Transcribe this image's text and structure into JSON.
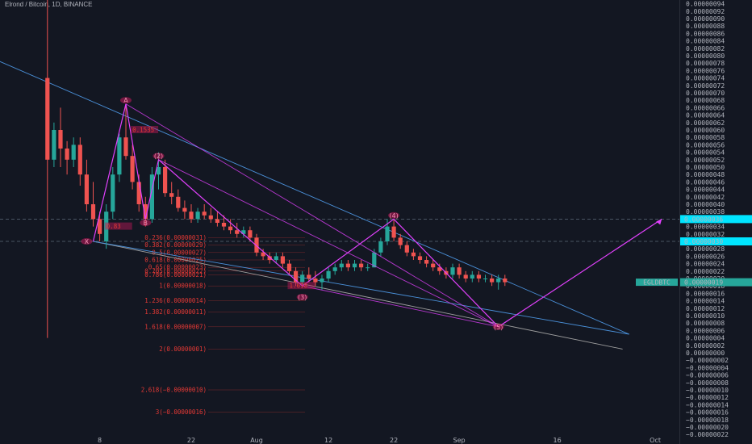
{
  "header": {
    "title": "Elrond / Bitcoin, 1D, BINANCE"
  },
  "colors": {
    "background": "#131722",
    "up": "#26a69a",
    "down": "#ef5350",
    "trendline": "#4a90d9",
    "wave": "#e040fb",
    "fib": "#e53935",
    "price_tag": "#26a69a",
    "cyan_tag": "#00e5ff"
  },
  "chart_data": {
    "type": "candlestick",
    "title": "Elrond / Bitcoin, 1D, BINANCE",
    "y_ticks": [
      "0.00000094",
      "0.00000092",
      "0.00000090",
      "0.00000088",
      "0.00000086",
      "0.00000084",
      "0.00000082",
      "0.00000080",
      "0.00000078",
      "0.00000076",
      "0.00000074",
      "0.00000072",
      "0.00000070",
      "0.00000068",
      "0.00000066",
      "0.00000064",
      "0.00000062",
      "0.00000060",
      "0.00000058",
      "0.00000056",
      "0.00000054",
      "0.00000052",
      "0.00000050",
      "0.00000048",
      "0.00000046",
      "0.00000044",
      "0.00000042",
      "0.00000040",
      "0.00000038",
      "0.00000036",
      "0.00000034",
      "0.00000032",
      "0.00000030",
      "0.00000028",
      "0.00000026",
      "0.00000024",
      "0.00000022",
      "0.00000020",
      "0.00000018",
      "0.00000016",
      "0.00000014",
      "0.00000012",
      "0.00000010",
      "0.00000008",
      "0.00000006",
      "0.00000004",
      "0.00000002",
      "0.00000000",
      "−0.00000002",
      "−0.00000004",
      "−0.00000006",
      "−0.00000008",
      "−0.00000010",
      "−0.00000012",
      "−0.00000014",
      "−0.00000016",
      "−0.00000018",
      "−0.00000020",
      "−0.00000022"
    ],
    "x_ticks": [
      {
        "label": "8",
        "day": -24
      },
      {
        "label": "22",
        "day": -10
      },
      {
        "label": "Aug",
        "day": 0
      },
      {
        "label": "12",
        "day": 11
      },
      {
        "label": "22",
        "day": 21
      },
      {
        "label": "Sep",
        "day": 31
      },
      {
        "label": "16",
        "day": 46
      },
      {
        "label": "Oct",
        "day": 61
      }
    ],
    "ohlc": [
      [
        -32,
        7.4e-07,
        9.5e-07,
        4e-08,
        5.2e-07
      ],
      [
        -31,
        5.2e-07,
        6.2e-07,
        5e-07,
        6e-07
      ],
      [
        -30,
        6e-07,
        6.6e-07,
        5e-07,
        5.5e-07
      ],
      [
        -29,
        5.5e-07,
        5.7e-07,
        4.8e-07,
        5.2e-07
      ],
      [
        -28,
        5.2e-07,
        5.8e-07,
        5e-07,
        5.6e-07
      ],
      [
        -27,
        5.6e-07,
        5.8e-07,
        4.5e-07,
        4.8e-07
      ],
      [
        -26,
        4.8e-07,
        5.2e-07,
        3.8e-07,
        4e-07
      ],
      [
        -25,
        4e-07,
        4.6e-07,
        3.4e-07,
        3.6e-07
      ],
      [
        -24,
        3.6e-07,
        3.8e-07,
        3e-07,
        3.2e-07
      ],
      [
        -23,
        3e-07,
        4e-07,
        2.8e-07,
        3.8e-07
      ],
      [
        -22,
        3.8e-07,
        5e-07,
        3.6e-07,
        4.8e-07
      ],
      [
        -21,
        4.8e-07,
        5.9e-07,
        4.6e-07,
        5.8e-07
      ],
      [
        -20,
        5.8e-07,
        6.7e-07,
        5.2e-07,
        5.3e-07
      ],
      [
        -19,
        5.3e-07,
        5.6e-07,
        4.4e-07,
        4.6e-07
      ],
      [
        -18,
        4.6e-07,
        4.8e-07,
        3.8e-07,
        4e-07
      ],
      [
        -17,
        4e-07,
        4.2e-07,
        3.4e-07,
        3.6e-07
      ],
      [
        -16,
        3.6e-07,
        5e-07,
        3.5e-07,
        4.8e-07
      ],
      [
        -15,
        4.8e-07,
        5.4e-07,
        4.4e-07,
        5e-07
      ],
      [
        -14,
        5e-07,
        5.2e-07,
        4.2e-07,
        4.3e-07
      ],
      [
        -13,
        4.3e-07,
        4.6e-07,
        4e-07,
        4.2e-07
      ],
      [
        -12,
        4.2e-07,
        4.4e-07,
        3.8e-07,
        3.9e-07
      ],
      [
        -11,
        3.9e-07,
        4.1e-07,
        3.6e-07,
        3.8e-07
      ],
      [
        -10,
        3.8e-07,
        4e-07,
        3.5e-07,
        3.6e-07
      ],
      [
        -9,
        3.6e-07,
        3.9e-07,
        3.5e-07,
        3.8e-07
      ],
      [
        -8,
        3.8e-07,
        4e-07,
        3.6e-07,
        3.7e-07
      ],
      [
        -7,
        3.7e-07,
        3.9e-07,
        3.5e-07,
        3.6e-07
      ],
      [
        -6,
        3.6e-07,
        3.8e-07,
        3.4e-07,
        3.5e-07
      ],
      [
        -5,
        3.5e-07,
        3.7e-07,
        3.3e-07,
        3.4e-07
      ],
      [
        -4,
        3.4e-07,
        3.6e-07,
        3.2e-07,
        3.3e-07
      ],
      [
        -3,
        3.3e-07,
        3.5e-07,
        3.1e-07,
        3.2e-07
      ],
      [
        -2,
        3.2e-07,
        3.4e-07,
        3.1e-07,
        3.3e-07
      ],
      [
        -1,
        3.3e-07,
        3.4e-07,
        3e-07,
        3.1e-07
      ],
      [
        0,
        3.1e-07,
        3.2e-07,
        2.6e-07,
        2.7e-07
      ],
      [
        1,
        2.7e-07,
        2.8e-07,
        2.5e-07,
        2.6e-07
      ],
      [
        2,
        2.6e-07,
        2.7e-07,
        2.4e-07,
        2.5e-07
      ],
      [
        3,
        2.5e-07,
        2.7e-07,
        2.4e-07,
        2.6e-07
      ],
      [
        4,
        2.6e-07,
        2.7e-07,
        2.3e-07,
        2.4e-07
      ],
      [
        5,
        2.4e-07,
        2.5e-07,
        2.1e-07,
        2.2e-07
      ],
      [
        6,
        2.2e-07,
        2.3e-07,
        1.8e-07,
        1.9e-07
      ],
      [
        7,
        1.9e-07,
        2.2e-07,
        1.8e-07,
        2.1e-07
      ],
      [
        8,
        2.1e-07,
        2.3e-07,
        1.9e-07,
        2e-07
      ],
      [
        9,
        2e-07,
        2.2e-07,
        1.8e-07,
        1.9e-07
      ],
      [
        10,
        1.9e-07,
        2.1e-07,
        1.7e-07,
        2e-07
      ],
      [
        11,
        2e-07,
        2.3e-07,
        1.9e-07,
        2.2e-07
      ],
      [
        12,
        2.2e-07,
        2.4e-07,
        2.1e-07,
        2.3e-07
      ],
      [
        13,
        2.3e-07,
        2.5e-07,
        2.2e-07,
        2.4e-07
      ],
      [
        14,
        2.4e-07,
        2.5e-07,
        2.2e-07,
        2.3e-07
      ],
      [
        15,
        2.3e-07,
        2.5e-07,
        2.2e-07,
        2.4e-07
      ],
      [
        16,
        2.4e-07,
        2.5e-07,
        2.2e-07,
        2.3e-07
      ],
      [
        17,
        2.3e-07,
        2.4e-07,
        2.2e-07,
        2.3e-07
      ],
      [
        18,
        2.3e-07,
        2.8e-07,
        2.3e-07,
        2.7e-07
      ],
      [
        19,
        2.7e-07,
        3.1e-07,
        2.6e-07,
        3e-07
      ],
      [
        20,
        3e-07,
        3.6e-07,
        2.9e-07,
        3.4e-07
      ],
      [
        21,
        3.4e-07,
        3.6e-07,
        3e-07,
        3.1e-07
      ],
      [
        22,
        3.1e-07,
        3.2e-07,
        2.8e-07,
        2.9e-07
      ],
      [
        23,
        2.9e-07,
        3e-07,
        2.6e-07,
        2.7e-07
      ],
      [
        24,
        2.7e-07,
        2.8e-07,
        2.5e-07,
        2.6e-07
      ],
      [
        25,
        2.6e-07,
        2.7e-07,
        2.4e-07,
        2.5e-07
      ],
      [
        26,
        2.5e-07,
        2.6e-07,
        2.3e-07,
        2.4e-07
      ],
      [
        27,
        2.4e-07,
        2.5e-07,
        2.2e-07,
        2.3e-07
      ],
      [
        28,
        2.3e-07,
        2.4e-07,
        2.1e-07,
        2.2e-07
      ],
      [
        29,
        2.2e-07,
        2.3e-07,
        2e-07,
        2.1e-07
      ],
      [
        30,
        2.1e-07,
        2.4e-07,
        2e-07,
        2.3e-07
      ],
      [
        31,
        2.3e-07,
        2.4e-07,
        2e-07,
        2.1e-07
      ],
      [
        32,
        2.1e-07,
        2.2e-07,
        1.9e-07,
        2e-07
      ],
      [
        33,
        2e-07,
        2.2e-07,
        1.9e-07,
        2.1e-07
      ],
      [
        34,
        2.1e-07,
        2.2e-07,
        1.9e-07,
        2e-07
      ],
      [
        35,
        2e-07,
        2.1e-07,
        1.9e-07,
        2e-07
      ],
      [
        36,
        2e-07,
        2.1e-07,
        1.8e-07,
        1.9e-07
      ],
      [
        37,
        1.9e-07,
        2.1e-07,
        1.7e-07,
        2e-07
      ],
      [
        38,
        2e-07,
        2.1e-07,
        1.8e-07,
        1.9e-07
      ]
    ],
    "trendlines": [
      {
        "color": "#4a90d9",
        "points": [
          [
            -40,
            7.9e-07
          ],
          [
            57,
            5e-08
          ]
        ]
      },
      {
        "color": "#9e9e9e",
        "points": [
          [
            -25,
            3e-07
          ],
          [
            56,
            1e-08
          ]
        ]
      },
      {
        "color": "#4a90d9",
        "points": [
          [
            -25,
            3e-07
          ],
          [
            57,
            5e-08
          ]
        ]
      }
    ],
    "wave_path": [
      [
        -25,
        3e-07
      ],
      [
        -20,
        6.7e-07
      ],
      [
        -17,
        3.6e-07
      ],
      [
        -15,
        5.2e-07
      ],
      [
        7,
        1.8e-07
      ],
      [
        21,
        3.6e-07
      ],
      [
        37,
        7e-08
      ],
      [
        62,
        3.6e-07
      ]
    ],
    "wave_extra": [
      [
        [
          -15,
          5.2e-07
        ],
        [
          37,
          7e-08
        ]
      ],
      [
        [
          -20,
          6.7e-07
        ],
        [
          37,
          7e-08
        ]
      ],
      [
        [
          7,
          1.8e-07
        ],
        [
          37,
          7e-08
        ]
      ]
    ],
    "wave_labels": [
      {
        "text": "A",
        "day": -20,
        "price": 6.8e-07
      },
      {
        "text": "(2)",
        "day": -15,
        "price": 5.3e-07
      },
      {
        "text": "(4)",
        "day": 21,
        "price": 3.7e-07
      },
      {
        "text": "(3)",
        "day": 7,
        "price": 1.5e-07
      },
      {
        "text": "(5)",
        "day": 37,
        "price": 7e-08
      },
      {
        "text": "X",
        "day": -26,
        "price": 3e-07
      },
      {
        "text": "B",
        "day": -17,
        "price": 3.5e-07
      }
    ],
    "annotations": [
      {
        "text": "0.1535",
        "day": -19,
        "price": 6e-07
      },
      {
        "text": "0.83",
        "day": -23,
        "price": 3.4e-07
      },
      {
        "text": "1.618",
        "day": 5,
        "price": 1.8e-07
      }
    ],
    "fib_levels": [
      {
        "label": "0.236(0.00000031)",
        "price": 3.1e-07
      },
      {
        "label": "0.382(0.00000029)",
        "price": 2.9e-07
      },
      {
        "label": "0.5(0.00000027)",
        "price": 2.7e-07
      },
      {
        "label": "0.618(0.00000025)",
        "price": 2.5e-07
      },
      {
        "label": "0.65(0.00000023)",
        "price": 2.3e-07
      },
      {
        "label": "0.705(0.00000022)",
        "price": 2.2e-07
      },
      {
        "label": "0.786(0.00000021)",
        "price": 2.1e-07
      },
      {
        "label": "1(0.00000018)",
        "price": 1.8e-07
      },
      {
        "label": "1.236(0.00000014)",
        "price": 1.4e-07
      },
      {
        "label": "1.382(0.00000011)",
        "price": 1.1e-07
      },
      {
        "label": "1.618(0.00000007)",
        "price": 7e-08
      },
      {
        "label": "2(0.00000001)",
        "price": 1e-08
      },
      {
        "label": "2.618(−0.00000010)",
        "price": -1e-07
      },
      {
        "label": "3(−0.00000016)",
        "price": -1.6e-07
      }
    ],
    "h_dashed": [
      3.6e-07,
      3e-07
    ],
    "price_tags": [
      {
        "text": "0.00000036",
        "price": 3.6e-07,
        "color": "#00e5ff",
        "text_color": "#131722"
      },
      {
        "text": "0.00000030",
        "price": 3e-07,
        "color": "#00e5ff",
        "text_color": "#131722"
      },
      {
        "text": "0.00000019",
        "price": 1.9e-07,
        "color": "#26a69a",
        "text_color": "#ffffff"
      }
    ],
    "symbol_tag": {
      "text": "EGLDBTC",
      "price": 1.9e-07
    }
  }
}
